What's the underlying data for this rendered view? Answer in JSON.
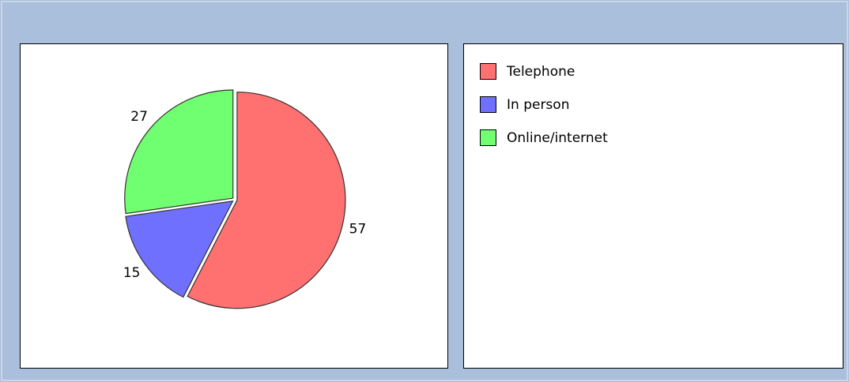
{
  "chart_data": {
    "type": "pie",
    "categories": [
      "Telephone",
      "In person",
      "Online/internet"
    ],
    "values": [
      57,
      15,
      27
    ],
    "colors": [
      "#ff7070",
      "#7070ff",
      "#70ff70"
    ],
    "legend": "right"
  }
}
